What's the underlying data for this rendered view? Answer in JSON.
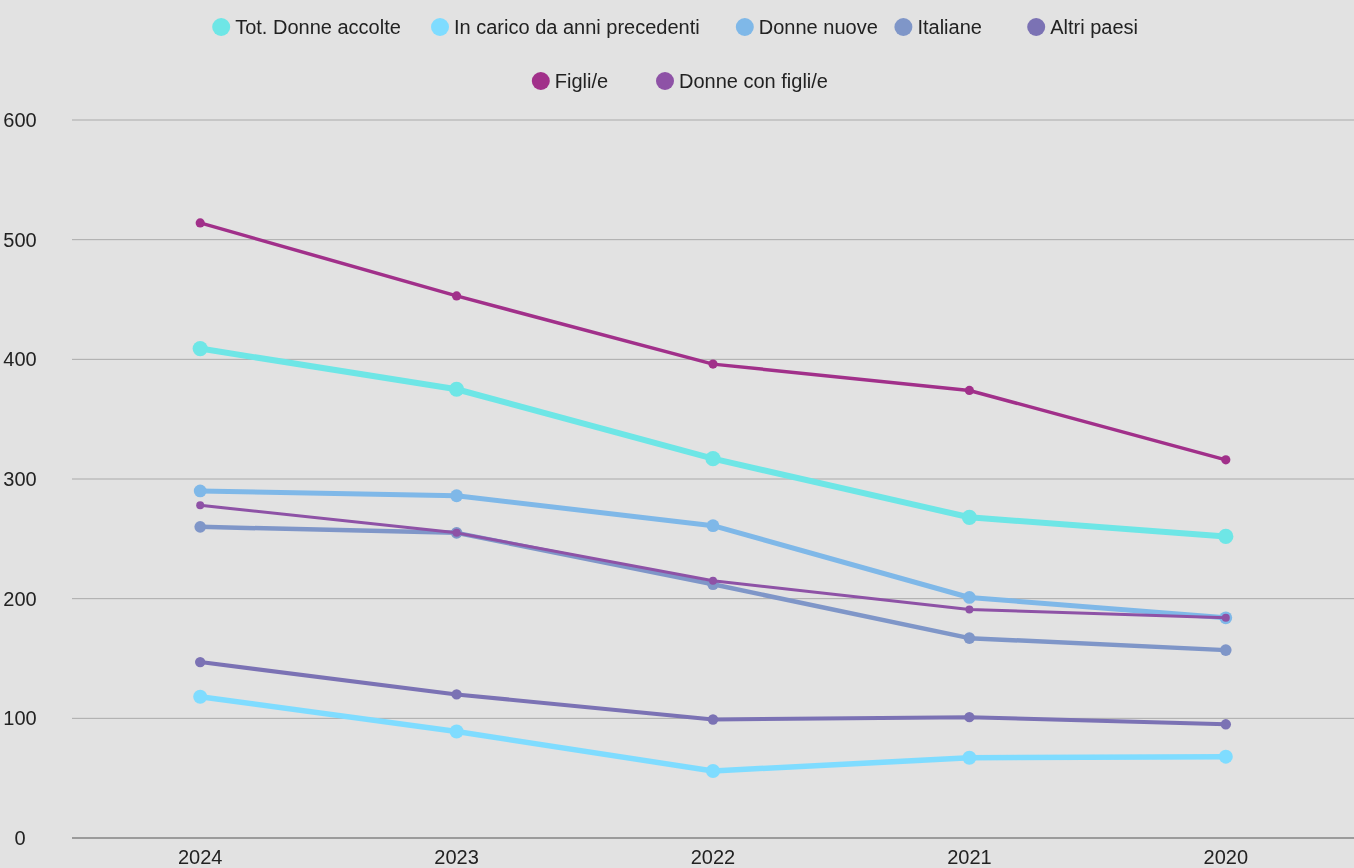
{
  "chart_data": {
    "type": "line",
    "categories": [
      "2024",
      "2023",
      "2022",
      "2021",
      "2020"
    ],
    "series": [
      {
        "name": "Tot. Donne accolte",
        "color": "#6ee6e6",
        "values": [
          409,
          375,
          317,
          268,
          252
        ]
      },
      {
        "name": "In carico da anni precedenti",
        "color": "#7fdcff",
        "values": [
          118,
          89,
          56,
          67,
          68
        ]
      },
      {
        "name": "Donne nuove",
        "color": "#7fb8e8",
        "values": [
          290,
          286,
          261,
          201,
          184
        ]
      },
      {
        "name": "Italiane",
        "color": "#7f96c8",
        "values": [
          260,
          255,
          212,
          167,
          157
        ]
      },
      {
        "name": "Altri paesi",
        "color": "#7b72b4",
        "values": [
          147,
          120,
          99,
          101,
          95
        ]
      },
      {
        "name": "Figli/e",
        "color": "#a1308a",
        "values": [
          514,
          453,
          396,
          374,
          316
        ]
      },
      {
        "name": "Donne con figli/e",
        "color": "#8e52a6",
        "values": [
          278,
          255,
          215,
          191,
          184
        ]
      }
    ],
    "ylim": [
      0,
      600
    ],
    "yticks": [
      0,
      100,
      200,
      300,
      400,
      500,
      600
    ],
    "grid": "y",
    "legend": "top",
    "marker": "circle",
    "line_style": "solid"
  }
}
